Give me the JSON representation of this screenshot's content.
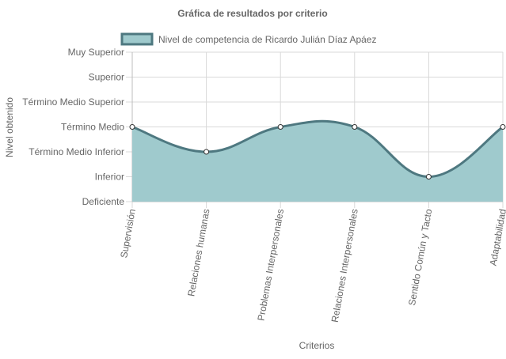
{
  "chart_data": {
    "type": "area",
    "title": "Gráfica de resultados por criterio",
    "xlabel": "Criterios",
    "ylabel": "Nivel obtenido",
    "categories": [
      "Supervisión",
      "Relaciones humanas",
      "Problemas Interpersonales",
      "Relaciones Interpersonales",
      "Sentido Común y Tacto",
      "Adaptabilidad"
    ],
    "y_levels": [
      "Deficiente",
      "Inferior",
      "Término Medio Inferior",
      "Término Medio",
      "Término Medio Superior",
      "Superior",
      "Muy Superior"
    ],
    "ylim": [
      0,
      6
    ],
    "series": [
      {
        "name": "Nivel de competencia de Ricardo Julián Díaz Apáez",
        "values": [
          3,
          2,
          3,
          3,
          1,
          3
        ]
      }
    ],
    "legend_position": "top",
    "grid": true,
    "colors": {
      "fill": "#9fcacd",
      "line": "#4e7880",
      "grid": "#d9d9d9",
      "point_fill": "#ffffff"
    }
  }
}
